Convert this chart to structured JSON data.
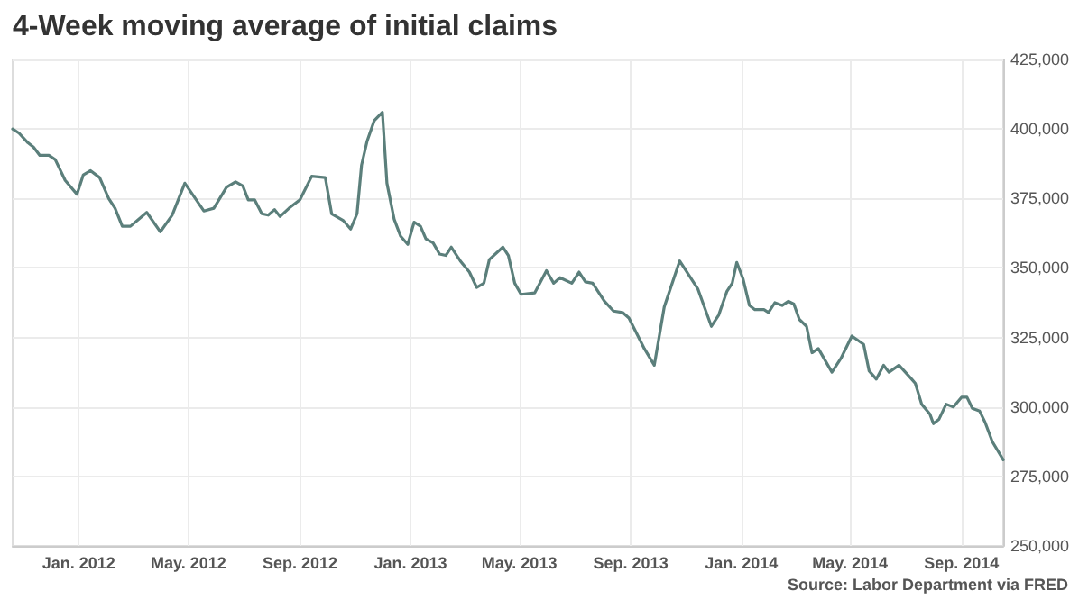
{
  "chart_data": {
    "type": "line",
    "title": "4-Week moving average of initial claims",
    "annotations": [
      "Source: Labor Department via FRED"
    ],
    "x": [
      "2011-10-20",
      "2011-10-27",
      "2011-11-06",
      "2011-11-12",
      "2011-11-19",
      "2011-11-29",
      "2011-12-06",
      "2011-12-17",
      "2011-12-30",
      "2012-01-06",
      "2012-01-14",
      "2012-01-24",
      "2012-02-03",
      "2012-02-10",
      "2012-02-18",
      "2012-02-27",
      "2012-03-16",
      "2012-03-31",
      "2012-04-13",
      "2012-04-27",
      "2012-05-18",
      "2012-05-29",
      "2012-06-12",
      "2012-06-22",
      "2012-06-30",
      "2012-07-06",
      "2012-07-13",
      "2012-07-21",
      "2012-07-28",
      "2012-08-04",
      "2012-08-10",
      "2012-08-20",
      "2012-09-01",
      "2012-09-14",
      "2012-09-29",
      "2012-10-06",
      "2012-10-19",
      "2012-10-27",
      "2012-11-03",
      "2012-11-08",
      "2012-11-14",
      "2012-11-22",
      "2012-12-01",
      "2012-12-06",
      "2012-12-14",
      "2012-12-21",
      "2012-12-29",
      "2013-01-05",
      "2013-01-12",
      "2013-01-18",
      "2013-01-26",
      "2013-02-02",
      "2013-02-09",
      "2013-02-15",
      "2013-02-25",
      "2013-03-07",
      "2013-03-15",
      "2013-03-23",
      "2013-03-29",
      "2013-04-13",
      "2013-04-19",
      "2013-04-26",
      "2013-05-03",
      "2013-05-18",
      "2013-05-31",
      "2013-06-08",
      "2013-06-15",
      "2013-06-28",
      "2013-07-06",
      "2013-07-13",
      "2013-07-21",
      "2013-08-03",
      "2013-08-13",
      "2013-08-23",
      "2013-08-30",
      "2013-09-16",
      "2013-09-27",
      "2013-10-08",
      "2013-10-25",
      "2013-11-04",
      "2013-11-14",
      "2013-11-29",
      "2013-12-07",
      "2013-12-16",
      "2013-12-22",
      "2013-12-27",
      "2014-01-03",
      "2014-01-10",
      "2014-01-16",
      "2014-01-26",
      "2014-01-31",
      "2014-02-07",
      "2014-02-15",
      "2014-02-22",
      "2014-02-28",
      "2014-03-06",
      "2014-03-14",
      "2014-03-20",
      "2014-03-27",
      "2014-04-11",
      "2014-04-21",
      "2014-05-03",
      "2014-05-16",
      "2014-05-22",
      "2014-05-30",
      "2014-06-07",
      "2014-06-13",
      "2014-06-24",
      "2014-07-08",
      "2014-07-12",
      "2014-07-19",
      "2014-07-28",
      "2014-08-01",
      "2014-08-07",
      "2014-08-15",
      "2014-08-23",
      "2014-09-01",
      "2014-09-07",
      "2014-09-13",
      "2014-09-21",
      "2014-09-27",
      "2014-10-05",
      "2014-10-17"
    ],
    "series": [
      {
        "color": "#5b7f7b",
        "values": [
          400000,
          398500,
          395000,
          393500,
          390500,
          390500,
          389000,
          381500,
          376500,
          383500,
          385000,
          382500,
          375000,
          371500,
          365000,
          365000,
          370000,
          363000,
          369000,
          380500,
          370500,
          371500,
          379000,
          381000,
          379500,
          374500,
          374500,
          369500,
          369000,
          371000,
          368500,
          371500,
          374500,
          383000,
          382500,
          369500,
          367000,
          364000,
          369500,
          387000,
          395500,
          403000,
          406000,
          380500,
          367500,
          361500,
          358500,
          366500,
          365000,
          360500,
          359000,
          355000,
          354500,
          357500,
          352500,
          348500,
          343000,
          344500,
          353000,
          357500,
          354500,
          344500,
          340500,
          341000,
          349000,
          344500,
          346500,
          344500,
          348500,
          345000,
          344500,
          338000,
          334500,
          334000,
          332000,
          321000,
          315000,
          336000,
          352500,
          347500,
          342500,
          329000,
          333000,
          341500,
          344500,
          352000,
          346000,
          336500,
          335000,
          335000,
          334000,
          337500,
          336500,
          338000,
          337000,
          331500,
          329000,
          319500,
          321000,
          312500,
          317500,
          325500,
          322500,
          313000,
          310000,
          315000,
          312500,
          315000,
          310000,
          308500,
          301000,
          297500,
          294000,
          295500,
          301000,
          300000,
          303500,
          303500,
          299500,
          298500,
          294500,
          287500,
          281000
        ]
      }
    ],
    "xlim": [
      "2011-10-20",
      "2014-10-17"
    ],
    "xticks": [
      {
        "value": "2012-01-01",
        "label": "Jan. 2012"
      },
      {
        "value": "2012-05-01",
        "label": "May. 2012"
      },
      {
        "value": "2012-09-01",
        "label": "Sep. 2012"
      },
      {
        "value": "2013-01-01",
        "label": "Jan. 2013"
      },
      {
        "value": "2013-05-01",
        "label": "May. 2013"
      },
      {
        "value": "2013-09-01",
        "label": "Sep. 2013"
      },
      {
        "value": "2014-01-01",
        "label": "Jan. 2014"
      },
      {
        "value": "2014-05-01",
        "label": "May. 2014"
      },
      {
        "value": "2014-09-01",
        "label": "Sep. 2014"
      }
    ],
    "ylim": [
      250000,
      425000
    ],
    "yticks": [
      {
        "value": 250000,
        "label": "250,000"
      },
      {
        "value": 275000,
        "label": "275,000"
      },
      {
        "value": 300000,
        "label": "300,000"
      },
      {
        "value": 325000,
        "label": "325,000"
      },
      {
        "value": 350000,
        "label": "350,000"
      },
      {
        "value": 375000,
        "label": "375,000"
      },
      {
        "value": 400000,
        "label": "400,000"
      },
      {
        "value": 425000,
        "label": "425,000"
      }
    ],
    "grid": true,
    "marker": "none",
    "line_style": "solid"
  }
}
